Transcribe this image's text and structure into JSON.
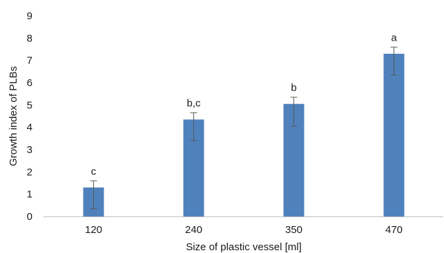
{
  "chart_data": {
    "type": "bar",
    "title": "",
    "xlabel": "Size of plastic vessel [ml]",
    "ylabel": "Growth index of PLBs",
    "ylim": [
      0,
      9
    ],
    "yticks": [
      "0",
      "1",
      "2",
      "3",
      "4",
      "5",
      "6",
      "7",
      "8",
      "9"
    ],
    "categories": [
      "120",
      "240",
      "350",
      "470"
    ],
    "values": [
      1.3,
      4.35,
      5.05,
      7.3
    ],
    "error_low": [
      0.35,
      3.4,
      4.05,
      6.35
    ],
    "error_high": [
      1.6,
      4.65,
      5.35,
      7.6
    ],
    "labels": [
      "c",
      "b,c",
      "b",
      "a"
    ],
    "grid": false,
    "legend": "none",
    "colors": {
      "bar": "#4f81bd",
      "axis": "#bfbfbf",
      "error_bar": "#595959",
      "text": "#1a1a1a"
    }
  }
}
